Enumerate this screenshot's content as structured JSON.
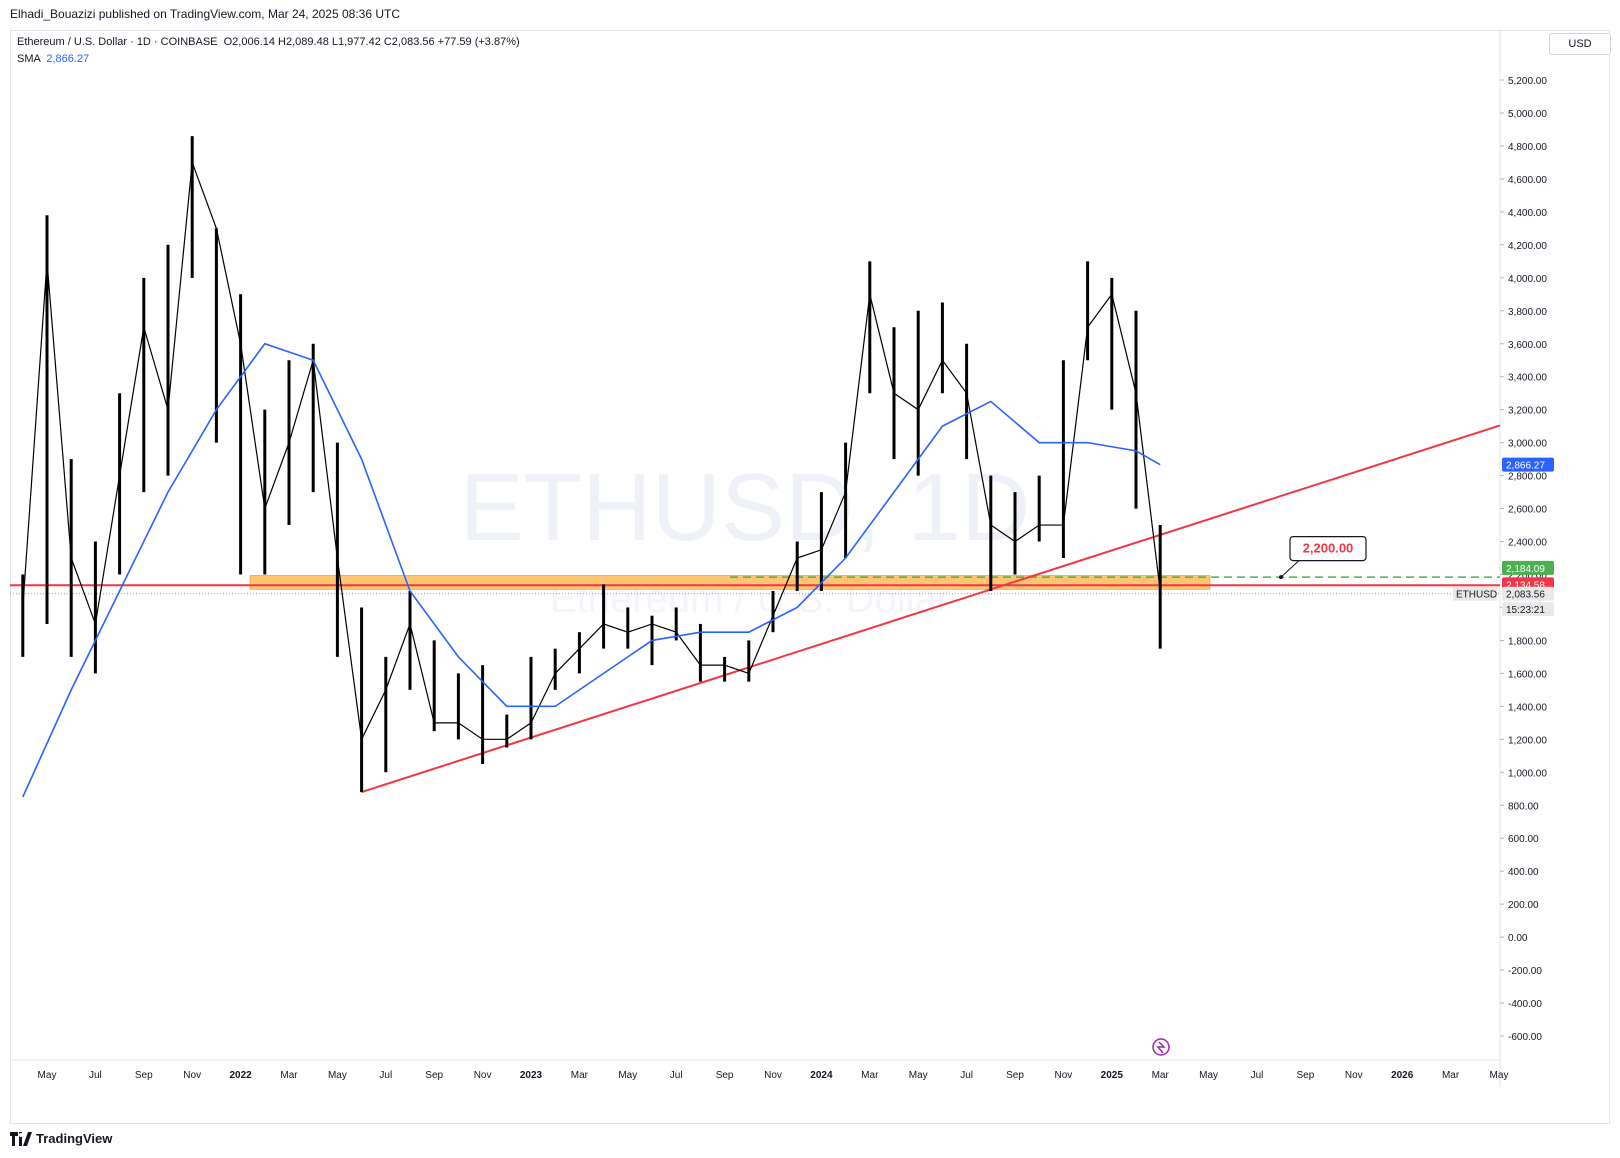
{
  "header": {
    "publisher": "Elhadi_Bouazizi published on TradingView.com, Mar 24, 2025 08:36 UTC"
  },
  "legend": {
    "symbol": "Ethereum / U.S. Dollar · 1D · COINBASE",
    "ohlc": "O2,006.14  H2,089.48  L1,977.42  C2,083.56  +77.59 (+3.87%)",
    "sma_label": "SMA",
    "sma_value": "2,866.27"
  },
  "watermark": {
    "main": "ETHUSD, 1D",
    "sub": "Ethereum / U.S. Dollar"
  },
  "currency": "USD",
  "price_labels": {
    "sma": "2,866.27",
    "dashed": "2,184.09",
    "red_line": "2,134.58",
    "symbol_tag": "ETHUSD",
    "last": "2,083.56",
    "countdown": "15:23:21"
  },
  "annotation": "2,200.00",
  "footer": {
    "brand": "TradingView"
  },
  "colors": {
    "candle": "#000000",
    "sma": "#2962ff",
    "trend": "#f23645",
    "zone": "#ffb74d",
    "dashed": "#4caf50"
  },
  "chart_data": {
    "type": "line",
    "title": "",
    "y_axis": {
      "min": -600,
      "max": 5200,
      "ticks": [
        5200,
        5000,
        4800,
        4600,
        4400,
        4200,
        4000,
        3800,
        3600,
        3400,
        3200,
        3000,
        2800,
        2600,
        2400,
        2200,
        2000,
        1800,
        1600,
        1400,
        1200,
        1000,
        800,
        600,
        400,
        200,
        0,
        -200,
        -400,
        -600
      ]
    },
    "x_axis": {
      "tick_labels": [
        "May",
        "Jul",
        "Sep",
        "Nov",
        "2022",
        "Mar",
        "May",
        "Jul",
        "Sep",
        "Nov",
        "2023",
        "Mar",
        "May",
        "Jul",
        "Sep",
        "Nov",
        "2024",
        "Mar",
        "May",
        "Jul",
        "Sep",
        "Nov",
        "2025",
        "Mar",
        "May",
        "Jul",
        "Sep",
        "Nov",
        "2026",
        "Mar",
        "May"
      ]
    },
    "series": [
      {
        "name": "",
        "x": [
          "2021-04",
          "2021-05",
          "2021-06",
          "2021-07",
          "2021-08",
          "2021-09",
          "2021-10",
          "2021-11",
          "2021-12",
          "2022-01",
          "2022-02",
          "2022-03",
          "2022-04",
          "2022-05",
          "2022-06",
          "2022-07",
          "2022-08",
          "2022-09",
          "2022-10",
          "2022-11",
          "2022-12",
          "2023-01",
          "2023-02",
          "2023-03",
          "2023-04",
          "2023-05",
          "2023-06",
          "2023-07",
          "2023-08",
          "2023-09",
          "2023-10",
          "2023-11",
          "2023-12",
          "2024-01",
          "2024-02",
          "2024-03",
          "2024-04",
          "2024-05",
          "2024-06",
          "2024-07",
          "2024-08",
          "2024-09",
          "2024-10",
          "2024-11",
          "2024-12",
          "2025-01",
          "2025-02",
          "2025-03"
        ],
        "close": [
          2000,
          4100,
          2300,
          1900,
          2800,
          3700,
          3200,
          4700,
          4300,
          3600,
          2600,
          3000,
          3500,
          2300,
          1200,
          1500,
          1900,
          1300,
          1300,
          1200,
          1200,
          1300,
          1600,
          1750,
          1900,
          1850,
          1900,
          1850,
          1650,
          1650,
          1600,
          1950,
          2300,
          2350,
          2700,
          3900,
          3300,
          3200,
          3500,
          3300,
          2500,
          2400,
          2500,
          2500,
          3700,
          3900,
          3300,
          2100
        ],
        "high": [
          2200,
          4380,
          2900,
          2400,
          3300,
          4000,
          4200,
          4860,
          4300,
          3900,
          3200,
          3500,
          3600,
          3000,
          2000,
          1700,
          2100,
          1800,
          1600,
          1650,
          1350,
          1700,
          1750,
          1850,
          2140,
          2000,
          1950,
          2000,
          1900,
          1700,
          1800,
          2100,
          2400,
          2700,
          3000,
          4100,
          3700,
          3800,
          3850,
          3600,
          2800,
          2700,
          2800,
          3500,
          4100,
          4000,
          3800,
          2500
        ],
        "low": [
          1700,
          1900,
          1700,
          1600,
          2200,
          2700,
          2800,
          4000,
          3000,
          2200,
          2200,
          2500,
          2700,
          1700,
          880,
          1000,
          1500,
          1250,
          1200,
          1050,
          1150,
          1200,
          1500,
          1600,
          1750,
          1750,
          1650,
          1800,
          1550,
          1550,
          1550,
          1850,
          2100,
          2100,
          2300,
          3300,
          2900,
          2800,
          3300,
          2900,
          2100,
          2200,
          2400,
          2300,
          3500,
          3200,
          2600,
          1750
        ]
      },
      {
        "name": "SMA",
        "x": [
          "2021-04",
          "2021-06",
          "2021-08",
          "2021-10",
          "2021-12",
          "2022-02",
          "2022-04",
          "2022-06",
          "2022-08",
          "2022-10",
          "2022-12",
          "2023-02",
          "2023-04",
          "2023-06",
          "2023-08",
          "2023-10",
          "2023-12",
          "2024-02",
          "2024-04",
          "2024-06",
          "2024-08",
          "2024-10",
          "2024-12",
          "2025-02",
          "2025-03"
        ],
        "values": [
          850,
          1500,
          2100,
          2700,
          3200,
          3600,
          3500,
          2900,
          2100,
          1700,
          1400,
          1400,
          1600,
          1800,
          1850,
          1850,
          2000,
          2300,
          2700,
          3100,
          3250,
          3000,
          3000,
          2950,
          2866
        ]
      }
    ],
    "levels": {
      "zone_low": 2134.58,
      "zone_high": 2200,
      "dashed": 2184.09,
      "last": 2083.56
    },
    "trendline": {
      "from": {
        "x": "2022-06",
        "y": 880
      },
      "to": {
        "x": "2025-12",
        "y": 2866
      }
    }
  }
}
